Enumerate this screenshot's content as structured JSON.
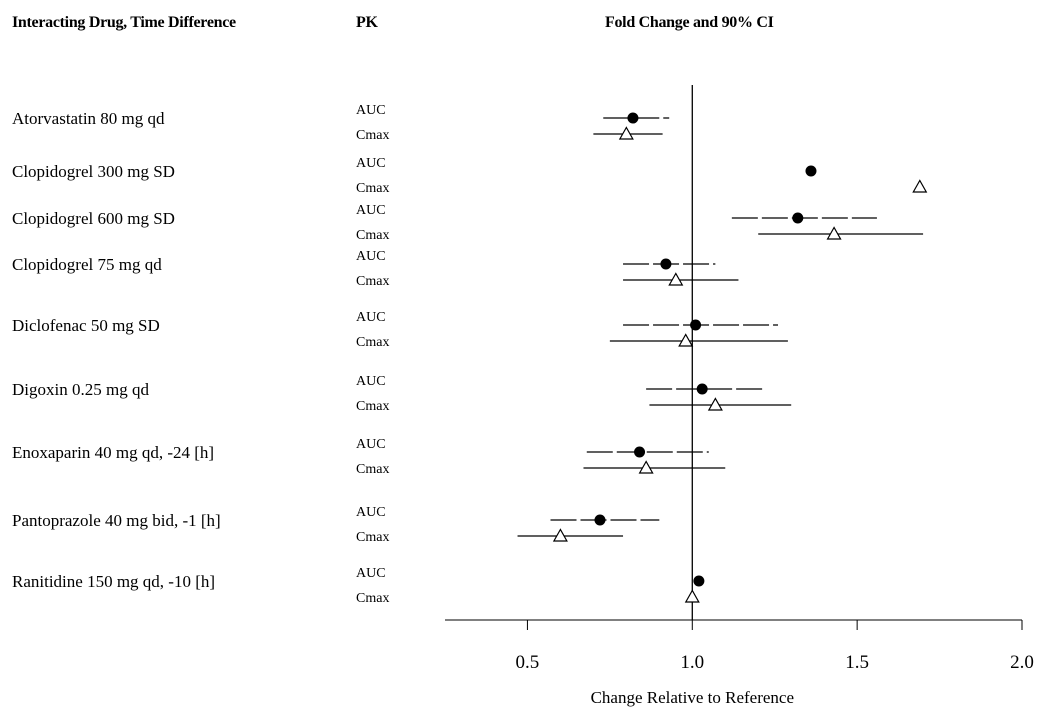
{
  "headers": {
    "drug": "Interacting Drug, Time Difference",
    "pk": "PK",
    "ci": "Fold Change and 90% CI"
  },
  "chart_data": {
    "type": "scatter",
    "title": "Fold Change and 90% CI",
    "xlabel": "Change Relative to Reference",
    "ylabel": "",
    "xlim": [
      0.25,
      2.0
    ],
    "xticks": [
      0.5,
      1.0,
      1.5,
      2.0
    ],
    "xtick_labels": [
      "0.5",
      "1.0",
      "1.5",
      "2.0"
    ],
    "reference_line": 1.0,
    "legend": "none",
    "grid": false,
    "markers": {
      "AUC": "filled circle",
      "Cmax": "open triangle"
    },
    "rows": [
      {
        "drug": "Atorvastatin 80 mg qd",
        "AUC": {
          "label": "AUC",
          "point": 0.82,
          "lo": 0.73,
          "hi": 0.93
        },
        "Cmax": {
          "label": "Cmax",
          "point": 0.8,
          "lo": 0.7,
          "hi": 0.91
        }
      },
      {
        "drug": "Clopidogrel 300 mg SD",
        "AUC": {
          "label": "AUC",
          "point": 1.36,
          "lo": null,
          "hi": null
        },
        "Cmax": {
          "label": "Cmax",
          "point": 1.69,
          "lo": null,
          "hi": null
        }
      },
      {
        "drug": "Clopidogrel 600 mg SD",
        "AUC": {
          "label": "AUC",
          "point": 1.32,
          "lo": 1.12,
          "hi": 1.56
        },
        "Cmax": {
          "label": "Cmax",
          "point": 1.43,
          "lo": 1.2,
          "hi": 1.7
        }
      },
      {
        "drug": "Clopidogrel 75 mg qd",
        "AUC": {
          "label": "AUC",
          "point": 0.92,
          "lo": 0.79,
          "hi": 1.07
        },
        "Cmax": {
          "label": "Cmax",
          "point": 0.95,
          "lo": 0.79,
          "hi": 1.14
        }
      },
      {
        "drug": "Diclofenac 50 mg SD",
        "AUC": {
          "label": "AUC",
          "point": 1.01,
          "lo": 0.79,
          "hi": 1.26
        },
        "Cmax": {
          "label": "Cmax",
          "point": 0.98,
          "lo": 0.75,
          "hi": 1.29
        }
      },
      {
        "drug": "Digoxin 0.25  mg qd",
        "AUC": {
          "label": "AUC",
          "point": 1.03,
          "lo": 0.86,
          "hi": 1.22
        },
        "Cmax": {
          "label": "Cmax",
          "point": 1.07,
          "lo": 0.87,
          "hi": 1.3
        }
      },
      {
        "drug": "Enoxaparin 40 mg qd, -24 [h]",
        "AUC": {
          "label": "AUC",
          "point": 0.84,
          "lo": 0.68,
          "hi": 1.05
        },
        "Cmax": {
          "label": "Cmax",
          "point": 0.86,
          "lo": 0.67,
          "hi": 1.1
        }
      },
      {
        "drug": "Pantoprazole 40 mg bid, -1 [h]",
        "AUC": {
          "label": "AUC",
          "point": 0.72,
          "lo": 0.57,
          "hi": 0.9
        },
        "Cmax": {
          "label": "Cmax",
          "point": 0.6,
          "lo": 0.47,
          "hi": 0.79
        }
      },
      {
        "drug": "Ranitidine 150 mg qd, -10 [h]",
        "AUC": {
          "label": "AUC",
          "point": 1.02,
          "lo": null,
          "hi": null
        },
        "Cmax": {
          "label": "Cmax",
          "point": 1.0,
          "lo": null,
          "hi": null
        }
      }
    ]
  }
}
